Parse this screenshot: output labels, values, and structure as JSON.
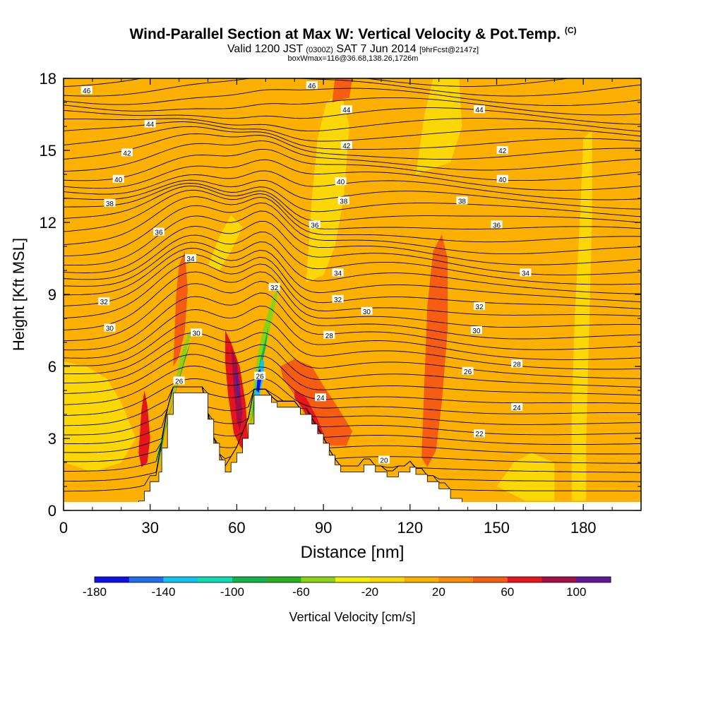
{
  "header": {
    "title": "Wind-Parallel Section at Max W: Vertical Velocity & Pot.Temp.",
    "title_unit": "(C)",
    "subtitle_main": "Valid 1200 JST",
    "subtitle_utc": "(0300Z)",
    "subtitle_date": "SAT 7 Jun 2014",
    "subtitle_fcst": "[9hrFcst@2147z]",
    "subtitle2": "boxWmax=116@36.68,138.26,1726m"
  },
  "chart_data": {
    "type": "heatmap",
    "xlabel": "Distance [nm]",
    "ylabel": "Height [Kft MSL]",
    "xlim": [
      0,
      200
    ],
    "ylim": [
      0,
      18
    ],
    "x_ticks": [
      0,
      30,
      60,
      90,
      120,
      150,
      180
    ],
    "y_ticks": [
      0,
      3,
      6,
      9,
      12,
      15,
      18
    ],
    "colorbar": {
      "label": "Vertical Velocity [cm/s]",
      "tick_labels": [
        -180,
        -140,
        -100,
        -60,
        -20,
        20,
        60,
        100
      ],
      "bins": [
        {
          "from": -180,
          "to": -160,
          "color": "#0f0fe6"
        },
        {
          "from": -160,
          "to": -140,
          "color": "#1f6ef0"
        },
        {
          "from": -140,
          "to": -120,
          "color": "#10c4f0"
        },
        {
          "from": -120,
          "to": -100,
          "color": "#10dcb4"
        },
        {
          "from": -100,
          "to": -80,
          "color": "#14b44c"
        },
        {
          "from": -80,
          "to": -60,
          "color": "#28b21e"
        },
        {
          "from": -60,
          "to": -40,
          "color": "#8cd214"
        },
        {
          "from": -40,
          "to": -20,
          "color": "#f0f000"
        },
        {
          "from": -20,
          "to": 0,
          "color": "#fbd706"
        },
        {
          "from": 0,
          "to": 20,
          "color": "#fbb002"
        },
        {
          "from": 20,
          "to": 40,
          "color": "#f98a0a"
        },
        {
          "from": 40,
          "to": 60,
          "color": "#f65d12"
        },
        {
          "from": 60,
          "to": 80,
          "color": "#e8141e"
        },
        {
          "from": 80,
          "to": 100,
          "color": "#a50f46"
        },
        {
          "from": 100,
          "to": 120,
          "color": "#5f1a96"
        }
      ]
    },
    "velocity_regions": [
      {
        "name": "updraft-west-edge",
        "value": -50,
        "polygon": [
          [
            32,
            2.2
          ],
          [
            33,
            2.7
          ],
          [
            36,
            4.0
          ],
          [
            41,
            6.6
          ],
          [
            43,
            7.3
          ],
          [
            45,
            7.7
          ],
          [
            40,
            5.6
          ],
          [
            36,
            4.0
          ],
          [
            34,
            2.6
          ],
          [
            33,
            1.8
          ]
        ]
      },
      {
        "name": "updraft-west",
        "value": -75,
        "polygon": [
          [
            33,
            2.3
          ],
          [
            36,
            3.8
          ],
          [
            40,
            5.5
          ],
          [
            42,
            6.4
          ],
          [
            44,
            7.0
          ],
          [
            41,
            5.8
          ],
          [
            38,
            4.6
          ],
          [
            35,
            3.2
          ],
          [
            34,
            2.5
          ]
        ]
      },
      {
        "name": "downdraft-west-main",
        "value": 70,
        "polygon": [
          [
            56,
            7.5
          ],
          [
            58,
            7.0
          ],
          [
            61,
            6.0
          ],
          [
            63,
            4.5
          ],
          [
            64,
            2.8
          ],
          [
            63,
            2.4
          ],
          [
            61,
            2.7
          ],
          [
            59,
            3.2
          ],
          [
            57,
            4.8
          ],
          [
            56,
            6.2
          ]
        ]
      },
      {
        "name": "downdraft-west-core",
        "value": 95,
        "polygon": [
          [
            58,
            6.8
          ],
          [
            60,
            6.2
          ],
          [
            61,
            5.2
          ],
          [
            62,
            4.0
          ],
          [
            61,
            3.3
          ],
          [
            60,
            3.8
          ],
          [
            59,
            5.0
          ]
        ]
      },
      {
        "name": "downdraft-west-peak",
        "value": 110,
        "polygon": [
          [
            59.5,
            5.9
          ],
          [
            60.5,
            5.6
          ],
          [
            61,
            4.9
          ],
          [
            60.3,
            4.6
          ],
          [
            59.7,
            5.1
          ]
        ]
      },
      {
        "name": "updraft-east-edge",
        "value": -50,
        "polygon": [
          [
            64,
            2.9
          ],
          [
            65,
            4.5
          ],
          [
            67,
            6.3
          ],
          [
            69,
            7.5
          ],
          [
            71,
            8.3
          ],
          [
            73,
            9.0
          ],
          [
            75,
            9.5
          ],
          [
            73,
            8.4
          ],
          [
            71,
            7.3
          ],
          [
            69,
            6.2
          ],
          [
            67,
            5.2
          ],
          [
            65,
            3.4
          ]
        ]
      },
      {
        "name": "updraft-east",
        "value": -90,
        "polygon": [
          [
            65,
            3.6
          ],
          [
            66,
            4.8
          ],
          [
            68,
            6.2
          ],
          [
            70,
            7.2
          ],
          [
            71,
            7.7
          ],
          [
            70,
            6.8
          ],
          [
            68,
            5.7
          ],
          [
            66,
            4.3
          ]
        ]
      },
      {
        "name": "updraft-east-core",
        "value": -130,
        "polygon": [
          [
            66,
            4.6
          ],
          [
            67,
            5.6
          ],
          [
            68.5,
            6.3
          ],
          [
            69.5,
            6.2
          ],
          [
            69,
            5.4
          ],
          [
            67.5,
            4.6
          ]
        ]
      },
      {
        "name": "updraft-east-peak",
        "value": -175,
        "polygon": [
          [
            66.8,
            5.0
          ],
          [
            67.4,
            5.8
          ],
          [
            68.2,
            5.9
          ],
          [
            68.4,
            5.4
          ],
          [
            67.6,
            4.9
          ]
        ]
      },
      {
        "name": "downdraft-mid",
        "value": 50,
        "polygon": [
          [
            75,
            6.0
          ],
          [
            80,
            6.3
          ],
          [
            86,
            6.0
          ],
          [
            90,
            5.2
          ],
          [
            95,
            4.3
          ],
          [
            100,
            3.3
          ],
          [
            98,
            2.7
          ],
          [
            92,
            2.7
          ],
          [
            86,
            3.5
          ],
          [
            80,
            4.8
          ],
          [
            76,
            5.5
          ]
        ]
      },
      {
        "name": "downdraft-mid-core",
        "value": 65,
        "polygon": [
          [
            80,
            5.0
          ],
          [
            84,
            4.7
          ],
          [
            88,
            3.8
          ],
          [
            90,
            3.2
          ],
          [
            87,
            3.3
          ],
          [
            83,
            4.2
          ],
          [
            80,
            4.7
          ]
        ]
      },
      {
        "name": "downdraft-west-column",
        "value": 50,
        "polygon": [
          [
            38,
            6.0
          ],
          [
            39,
            9.0
          ],
          [
            40,
            10.2
          ],
          [
            42,
            10.8
          ],
          [
            43,
            9.2
          ],
          [
            42,
            7.5
          ],
          [
            40,
            6.4
          ]
        ]
      },
      {
        "name": "downdraft-far-west",
        "value": 65,
        "polygon": [
          [
            26,
            2.4
          ],
          [
            27,
            4.2
          ],
          [
            28,
            5.0
          ],
          [
            29,
            4.4
          ],
          [
            30,
            3.0
          ],
          [
            29,
            2.0
          ],
          [
            27,
            1.8
          ]
        ]
      },
      {
        "name": "downdraft-east-column",
        "value": 40,
        "polygon": [
          [
            124,
            2.2
          ],
          [
            125,
            5.5
          ],
          [
            126,
            8.5
          ],
          [
            128,
            10.8
          ],
          [
            131,
            11.5
          ],
          [
            133,
            10.5
          ],
          [
            133,
            7.5
          ],
          [
            131,
            4.5
          ],
          [
            129,
            2.5
          ],
          [
            126,
            1.8
          ]
        ]
      },
      {
        "name": "updraft-east-band",
        "value": -15,
        "polygon": [
          [
            176,
            0.4
          ],
          [
            176,
            4.0
          ],
          [
            177,
            8.0
          ],
          [
            179,
            12.5
          ],
          [
            180,
            15.5
          ],
          [
            183,
            15.8
          ],
          [
            183,
            12.0
          ],
          [
            182,
            7.5
          ],
          [
            181,
            3.0
          ],
          [
            181,
            0.4
          ]
        ]
      },
      {
        "name": "updraft-upper-1",
        "value": -15,
        "polygon": [
          [
            84,
            9.5
          ],
          [
            86,
            13.0
          ],
          [
            88,
            15.5
          ],
          [
            91,
            17.0
          ],
          [
            96,
            17.5
          ],
          [
            99,
            16.0
          ],
          [
            97,
            13.0
          ],
          [
            94,
            11.0
          ],
          [
            90,
            9.8
          ]
        ]
      },
      {
        "name": "updraft-upper-2",
        "value": -15,
        "polygon": [
          [
            122,
            14.0
          ],
          [
            125,
            16.5
          ],
          [
            128,
            18
          ],
          [
            137,
            18
          ],
          [
            138,
            16.0
          ],
          [
            134,
            14.5
          ]
        ]
      },
      {
        "name": "updraft-upper-3",
        "value": -15,
        "polygon": [
          [
            50,
            10.2
          ],
          [
            54,
            11.4
          ],
          [
            58,
            12.3
          ],
          [
            62,
            11.8
          ],
          [
            58,
            10.8
          ],
          [
            54,
            10.0
          ]
        ]
      },
      {
        "name": "updraft-west-lowlevel",
        "value": -15,
        "polygon": [
          [
            0,
            2.0
          ],
          [
            0,
            6.2
          ],
          [
            8,
            6.0
          ],
          [
            15,
            5.5
          ],
          [
            20,
            4.5
          ],
          [
            25,
            3.0
          ],
          [
            20,
            2.0
          ],
          [
            10,
            1.6
          ]
        ]
      },
      {
        "name": "updraft-far-east",
        "value": -15,
        "polygon": [
          [
            150,
            1.0
          ],
          [
            156,
            2.0
          ],
          [
            162,
            2.4
          ],
          [
            170,
            2.0
          ],
          [
            170,
            0.4
          ],
          [
            160,
            0.4
          ]
        ]
      },
      {
        "name": "downdraft-top",
        "value": 50,
        "polygon": [
          [
            93,
            17.0
          ],
          [
            94,
            18
          ],
          [
            100,
            18
          ],
          [
            99,
            17.2
          ]
        ]
      }
    ],
    "terrain_blocks": [
      [
        26,
        0.4
      ],
      [
        28,
        0.8
      ],
      [
        30,
        1.2
      ],
      [
        33,
        1.6
      ],
      [
        34,
        2.6
      ],
      [
        36,
        4.0
      ],
      [
        38,
        4.9
      ],
      [
        48,
        4.9
      ],
      [
        50,
        3.8
      ],
      [
        52,
        2.8
      ],
      [
        54,
        2.1
      ],
      [
        56,
        1.6
      ],
      [
        58,
        2.0
      ],
      [
        60,
        2.4
      ],
      [
        62,
        3.0
      ],
      [
        64,
        3.6
      ],
      [
        66,
        4.8
      ],
      [
        70,
        4.8
      ],
      [
        72,
        4.5
      ],
      [
        74,
        4.3
      ],
      [
        78,
        4.3
      ],
      [
        82,
        4.0
      ],
      [
        86,
        3.6
      ],
      [
        88,
        3.2
      ],
      [
        90,
        2.8
      ],
      [
        92,
        2.3
      ],
      [
        94,
        1.9
      ],
      [
        96,
        1.6
      ],
      [
        100,
        1.6
      ],
      [
        104,
        1.9
      ],
      [
        108,
        1.6
      ],
      [
        112,
        1.4
      ],
      [
        116,
        1.6
      ],
      [
        120,
        1.8
      ],
      [
        122,
        1.5
      ],
      [
        126,
        1.2
      ],
      [
        130,
        0.9
      ],
      [
        134,
        0.5
      ],
      [
        138,
        0.3
      ]
    ],
    "theta_contour_labels": [
      {
        "value": 46,
        "x": 8,
        "y": 17.5
      },
      {
        "value": 46,
        "x": 86,
        "y": 17.7
      },
      {
        "value": 44,
        "x": 30,
        "y": 16.1
      },
      {
        "value": 44,
        "x": 98,
        "y": 16.7
      },
      {
        "value": 44,
        "x": 144,
        "y": 16.7
      },
      {
        "value": 42,
        "x": 22,
        "y": 14.9
      },
      {
        "value": 42,
        "x": 98,
        "y": 15.2
      },
      {
        "value": 42,
        "x": 152,
        "y": 15.0
      },
      {
        "value": 40,
        "x": 19,
        "y": 13.8
      },
      {
        "value": 40,
        "x": 96,
        "y": 13.7
      },
      {
        "value": 40,
        "x": 152,
        "y": 13.8
      },
      {
        "value": 38,
        "x": 16,
        "y": 12.8
      },
      {
        "value": 38,
        "x": 97,
        "y": 12.9
      },
      {
        "value": 38,
        "x": 138,
        "y": 12.9
      },
      {
        "value": 36,
        "x": 33,
        "y": 11.6
      },
      {
        "value": 36,
        "x": 87,
        "y": 11.9
      },
      {
        "value": 36,
        "x": 150,
        "y": 11.9
      },
      {
        "value": 34,
        "x": 44,
        "y": 10.5
      },
      {
        "value": 34,
        "x": 95,
        "y": 9.9
      },
      {
        "value": 34,
        "x": 160,
        "y": 9.9
      },
      {
        "value": 32,
        "x": 14,
        "y": 8.7
      },
      {
        "value": 32,
        "x": 73,
        "y": 9.3
      },
      {
        "value": 32,
        "x": 95,
        "y": 8.8
      },
      {
        "value": 32,
        "x": 144,
        "y": 8.5
      },
      {
        "value": 30,
        "x": 16,
        "y": 7.6
      },
      {
        "value": 30,
        "x": 46,
        "y": 7.4
      },
      {
        "value": 30,
        "x": 105,
        "y": 8.3
      },
      {
        "value": 30,
        "x": 143,
        "y": 7.5
      },
      {
        "value": 28,
        "x": 92,
        "y": 7.3
      },
      {
        "value": 28,
        "x": 157,
        "y": 6.1
      },
      {
        "value": 26,
        "x": 40,
        "y": 5.4
      },
      {
        "value": 26,
        "x": 68,
        "y": 5.6
      },
      {
        "value": 26,
        "x": 140,
        "y": 5.8
      },
      {
        "value": 24,
        "x": 89,
        "y": 4.7
      },
      {
        "value": 24,
        "x": 157,
        "y": 4.3
      },
      {
        "value": 22,
        "x": 144,
        "y": 3.2
      },
      {
        "value": 20,
        "x": 111,
        "y": 2.1
      }
    ]
  }
}
